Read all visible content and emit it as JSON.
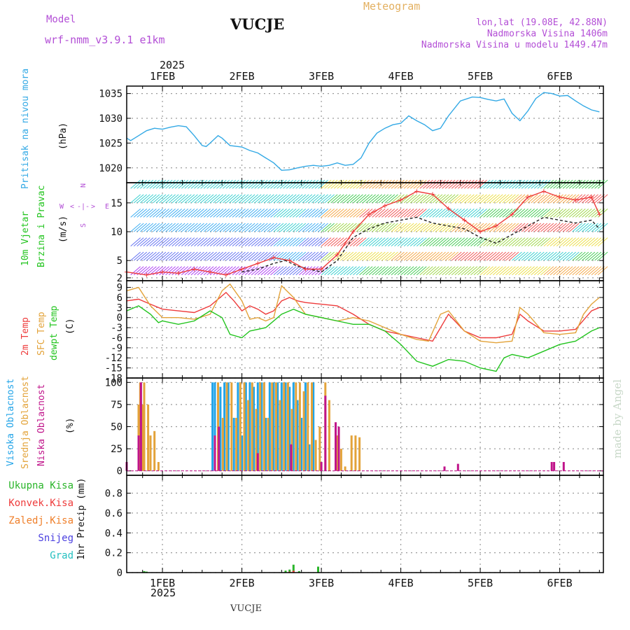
{
  "header": {
    "model_label": "Model",
    "model_name": "wrf-nmm_v3.9.1  e1km",
    "title": "VUCJE",
    "product": "Meteogram",
    "coords": "lon,lat (19.08E, 42.88N)",
    "altitude": "Nadmorska Visina 1406m",
    "model_altitude": "Nadmorska Visina u modelu 1449.47m",
    "footer_station": "VUCJE",
    "credit": "made by Angel"
  },
  "colors": {
    "pressure": "#33a9e5",
    "temp2m": "#ee3b3b",
    "sfc_temp": "#e3a33a",
    "dewpoint": "#22c41e",
    "high_cloud": "#22a4e8",
    "mid_cloud": "#e3a33a",
    "low_cloud": "#c0148a",
    "total_precip": "#2ab52a",
    "conv_precip": "#ee3b3b",
    "frozen_precip": "#ef7f2a",
    "snow": "#4b40e0",
    "hail": "#24c0c0",
    "header_purple": "#b34fd6",
    "header_orange": "#e3b060"
  },
  "chart_data": [
    {
      "type": "line",
      "panel": "pressure",
      "ylabel_name": "Pritisak na nivou mora",
      "ylabel_unit": "(hPa)",
      "ylim": [
        1017,
        1036.5
      ],
      "yticks": [
        1020,
        1025,
        1030,
        1035
      ],
      "grid": true,
      "series": [
        {
          "color": "#33a9e5",
          "x": [
            0.55,
            0.6,
            0.7,
            0.8,
            0.9,
            1.0,
            1.1,
            1.2,
            1.3,
            1.4,
            1.5,
            1.55,
            1.6,
            1.7,
            1.75,
            1.85,
            2.0,
            2.1,
            2.2,
            2.3,
            2.4,
            2.5,
            2.6,
            2.7,
            2.8,
            2.9,
            3.0,
            3.1,
            3.2,
            3.3,
            3.4,
            3.5,
            3.6,
            3.7,
            3.8,
            3.9,
            4.0,
            4.1,
            4.2,
            4.3,
            4.4,
            4.5,
            4.6,
            4.7,
            4.75,
            4.9,
            5.0,
            5.1,
            5.2,
            5.3,
            5.4,
            5.5,
            5.6,
            5.7,
            5.8,
            5.9,
            6.0,
            6.1,
            6.2,
            6.3,
            6.4,
            6.5
          ],
          "y": [
            1026,
            1025.5,
            1026.5,
            1027.5,
            1028,
            1027.8,
            1028.2,
            1028.5,
            1028.3,
            1026.5,
            1024.5,
            1024.3,
            1025,
            1026.5,
            1026,
            1024.5,
            1024.2,
            1023.5,
            1023,
            1022,
            1021,
            1019.5,
            1019.6,
            1020,
            1020.3,
            1020.5,
            1020.3,
            1020.5,
            1021,
            1020.5,
            1020.7,
            1022,
            1025,
            1027,
            1028,
            1028.7,
            1029,
            1030.5,
            1029.5,
            1028.7,
            1027.5,
            1028,
            1030.5,
            1032.5,
            1033.5,
            1034.3,
            1034.2,
            1033.8,
            1033.5,
            1033.9,
            1031,
            1029.5,
            1031.5,
            1034,
            1035.2,
            1035,
            1034.5,
            1034.6,
            1033.5,
            1032.5,
            1031.7,
            1031.3
          ]
        }
      ]
    },
    {
      "type": "line",
      "panel": "wind",
      "ylabel_name": "10m Vjetar",
      "ylabel_name2": "Brzina i Pravac",
      "ylabel_unit": "(m/s)",
      "compass": {
        "n": "N",
        "w": "W",
        "e": "E",
        "s": "S",
        "gap": "-|-",
        "left": "<",
        "right": ">",
        "up": "^",
        "down": "v"
      },
      "ylim": [
        1.5,
        18.5
      ],
      "yticks": [
        2,
        5,
        10,
        15
      ],
      "grid": true,
      "series": [
        {
          "name": "speed",
          "color": "#222222",
          "x": [
            2.0,
            2.2,
            2.4,
            2.55,
            2.7,
            3.0,
            3.2,
            3.4,
            3.6,
            3.8,
            4.0,
            4.2,
            4.4,
            4.6,
            4.8,
            5.0,
            5.2,
            5.4,
            5.6,
            5.8,
            6.0,
            6.2,
            6.4,
            6.5
          ],
          "y": [
            3,
            3.5,
            4.5,
            5,
            4,
            3,
            5,
            9,
            10.5,
            11.5,
            12,
            12.5,
            11.5,
            11,
            10.5,
            9,
            8,
            9.5,
            11,
            12.5,
            12,
            11.5,
            12,
            10.5
          ]
        },
        {
          "name": "gust",
          "color": "#ee3b3b",
          "x": [
            0.55,
            0.8,
            1.0,
            1.2,
            1.4,
            1.6,
            1.8,
            2.0,
            2.2,
            2.4,
            2.6,
            2.8,
            3.0,
            3.2,
            3.4,
            3.6,
            3.8,
            4.0,
            4.2,
            4.4,
            4.6,
            4.8,
            5.0,
            5.2,
            5.4,
            5.6,
            5.8,
            6.0,
            6.2,
            6.4,
            6.5
          ],
          "y": [
            3,
            2.5,
            3,
            2.8,
            3.5,
            3,
            2.5,
            3.5,
            4.5,
            5.5,
            5,
            3.5,
            3.5,
            6,
            10,
            13,
            14.5,
            15.5,
            17,
            16.5,
            14,
            12,
            10,
            11,
            13,
            16,
            17,
            16,
            15.5,
            16,
            13
          ]
        }
      ]
    },
    {
      "type": "line",
      "panel": "temperature",
      "ylabel_names": [
        "2m Temp",
        "SFC Temp",
        "dewpt Temp"
      ],
      "ylabel_unit": "(C)",
      "ylim": [
        -18,
        11
      ],
      "yticks": [
        -18,
        -15,
        -12,
        -9,
        -6,
        -3,
        0,
        3,
        6,
        9
      ],
      "grid": true,
      "series": [
        {
          "name": "2m Temp",
          "color": "#ee3b3b",
          "x": [
            0.55,
            0.7,
            0.85,
            1.0,
            1.2,
            1.4,
            1.6,
            1.8,
            1.9,
            2.0,
            2.1,
            2.2,
            2.3,
            2.4,
            2.5,
            2.6,
            2.7,
            2.8,
            3.0,
            3.2,
            3.4,
            3.6,
            3.8,
            4.0,
            4.2,
            4.4,
            4.5,
            4.6,
            4.8,
            5.0,
            5.2,
            5.4,
            5.5,
            5.6,
            5.8,
            6.0,
            6.2,
            6.4,
            6.5
          ],
          "y": [
            5,
            5.5,
            4,
            2.5,
            2,
            1.5,
            3.5,
            7.5,
            5,
            2,
            3.5,
            2.5,
            1,
            2,
            5,
            6,
            5,
            4.5,
            4,
            3.5,
            1,
            -2,
            -4,
            -5,
            -6,
            -7,
            -3,
            1,
            -4,
            -6,
            -6,
            -5,
            1,
            -1,
            -4,
            -4,
            -3.5,
            2,
            3
          ]
        },
        {
          "name": "SFC Temp",
          "color": "#e3a33a",
          "x": [
            0.55,
            0.7,
            0.85,
            1.0,
            1.2,
            1.4,
            1.6,
            1.75,
            1.85,
            2.0,
            2.1,
            2.2,
            2.3,
            2.4,
            2.5,
            2.65,
            2.8,
            3.0,
            3.2,
            3.4,
            3.6,
            3.8,
            4.0,
            4.2,
            4.35,
            4.5,
            4.6,
            4.8,
            5.0,
            5.2,
            5.4,
            5.5,
            5.6,
            5.8,
            6.0,
            6.2,
            6.3,
            6.4,
            6.5
          ],
          "y": [
            8,
            9,
            3.5,
            0,
            0,
            -0.5,
            1,
            8,
            10,
            5,
            -0.5,
            0,
            -1,
            0,
            9.5,
            6,
            1,
            0,
            -1,
            0,
            -1,
            -3,
            -5,
            -6.5,
            -7,
            1,
            2,
            -4,
            -7,
            -7.5,
            -7,
            3,
            1,
            -4.5,
            -5,
            -4.5,
            1,
            4,
            6
          ]
        },
        {
          "name": "dewpt Temp",
          "color": "#22c41e",
          "x": [
            0.55,
            0.7,
            0.85,
            0.95,
            1.0,
            1.2,
            1.4,
            1.6,
            1.75,
            1.85,
            2.0,
            2.1,
            2.3,
            2.5,
            2.65,
            2.8,
            3.0,
            3.2,
            3.4,
            3.6,
            3.8,
            4.0,
            4.2,
            4.4,
            4.6,
            4.8,
            5.0,
            5.2,
            5.3,
            5.4,
            5.6,
            5.8,
            6.0,
            6.2,
            6.4,
            6.5
          ],
          "y": [
            2,
            3.5,
            1,
            -1.5,
            -1,
            -2,
            -1,
            2,
            0,
            -5,
            -6,
            -4,
            -3,
            1,
            2.5,
            1,
            0,
            -1,
            -2,
            -2,
            -4,
            -8,
            -13,
            -14.5,
            -12.5,
            -13,
            -15,
            -16,
            -12,
            -11,
            -12,
            -10,
            -8,
            -7,
            -4,
            -3
          ]
        }
      ]
    },
    {
      "type": "bar",
      "panel": "cloud",
      "ylabel_names": [
        "Visoka Oblacnost",
        "Srednja Oblacnost",
        "Niska Oblacnost"
      ],
      "ylabel_unit": "(%)",
      "ylim": [
        -5,
        105
      ],
      "yticks": [
        0,
        25,
        50,
        75,
        100
      ],
      "grid": true,
      "series": [
        {
          "name": "Visoka Oblacnost",
          "color": "#22a4e8",
          "x": [
            1.63,
            1.66,
            1.73,
            1.78,
            1.83,
            1.9,
            1.95,
            2.0,
            2.05,
            2.1,
            2.15,
            2.2,
            2.25,
            2.3,
            2.35,
            2.4,
            2.45,
            2.5,
            2.55,
            2.6,
            2.65,
            2.7,
            2.75,
            2.8,
            2.85,
            2.9
          ],
          "y": [
            100,
            100,
            95,
            100,
            100,
            60,
            100,
            40,
            100,
            100,
            95,
            100,
            100,
            60,
            100,
            100,
            100,
            100,
            100,
            95,
            100,
            80,
            60,
            100,
            30,
            100
          ]
        },
        {
          "name": "Srednja Oblacnost",
          "color": "#e3a33a",
          "x": [
            0.7,
            0.72,
            0.75,
            0.77,
            0.82,
            0.85,
            0.9,
            0.95,
            1.7,
            1.76,
            1.81,
            1.87,
            1.93,
            1.98,
            2.03,
            2.08,
            2.13,
            2.18,
            2.23,
            2.28,
            2.33,
            2.38,
            2.43,
            2.48,
            2.53,
            2.58,
            2.63,
            2.68,
            2.73,
            2.78,
            2.83,
            2.88,
            2.93,
            2.98,
            3.05,
            3.1,
            3.2,
            3.25,
            3.3,
            3.38,
            3.43,
            3.48
          ],
          "y": [
            75,
            100,
            75,
            100,
            75,
            40,
            45,
            10,
            100,
            60,
            100,
            100,
            60,
            100,
            100,
            80,
            100,
            70,
            100,
            100,
            60,
            100,
            100,
            80,
            100,
            100,
            70,
            100,
            100,
            90,
            100,
            100,
            35,
            50,
            100,
            80,
            40,
            25,
            5,
            40,
            40,
            38
          ]
        },
        {
          "name": "Niska Oblacnost",
          "color": "#c0148a",
          "x": [
            0.55,
            0.7,
            0.73,
            1.66,
            1.71,
            2.2,
            2.62,
            3.0,
            3.05,
            3.18,
            3.22,
            4.55,
            4.72,
            5.9,
            5.93,
            6.05
          ],
          "y": [
            10,
            40,
            100,
            40,
            50,
            20,
            30,
            10,
            85,
            55,
            50,
            5,
            8,
            10,
            10,
            10
          ]
        }
      ]
    },
    {
      "type": "bar",
      "panel": "precip",
      "ylabel": "1hr Precip (mm)",
      "legend": [
        "Ukupna Kisa",
        "Konvek.Kisa",
        "Zaledj.Kisa",
        "Snijeg",
        "Grad"
      ],
      "ylim": [
        0,
        0.98
      ],
      "yticks": [
        0,
        0.2,
        0.4,
        0.6,
        0.8
      ],
      "grid": true,
      "series": [
        {
          "name": "Ukupna Kisa",
          "color": "#2ab52a",
          "x": [
            0.77,
            0.8,
            2.55,
            2.6,
            2.65,
            2.72,
            2.96
          ],
          "y": [
            0.015,
            0.01,
            0.02,
            0.03,
            0.08,
            0.015,
            0.06
          ]
        },
        {
          "name": "Konvek.Kisa",
          "color": "#ee3b3b",
          "x": [
            2.6,
            2.65
          ],
          "y": [
            0.01,
            0.02
          ]
        },
        {
          "name": "Zaledj.Kisa",
          "color": "#ef7f2a",
          "x": [
            2.63
          ],
          "y": [
            0.005
          ]
        },
        {
          "name": "Snijeg",
          "color": "#4b40e0",
          "x": [],
          "y": []
        },
        {
          "name": "Grad",
          "color": "#24c0c0",
          "x": [],
          "y": []
        }
      ]
    }
  ],
  "time_axis": {
    "year": "2025",
    "xlim": [
      0.55,
      6.55
    ],
    "ticks": [
      {
        "value": 1,
        "label": "1FEB"
      },
      {
        "value": 2,
        "label": "2FEB"
      },
      {
        "value": 3,
        "label": "3FEB"
      },
      {
        "value": 4,
        "label": "4FEB"
      },
      {
        "value": 5,
        "label": "5FEB"
      },
      {
        "value": 6,
        "label": "6FEB"
      }
    ]
  }
}
